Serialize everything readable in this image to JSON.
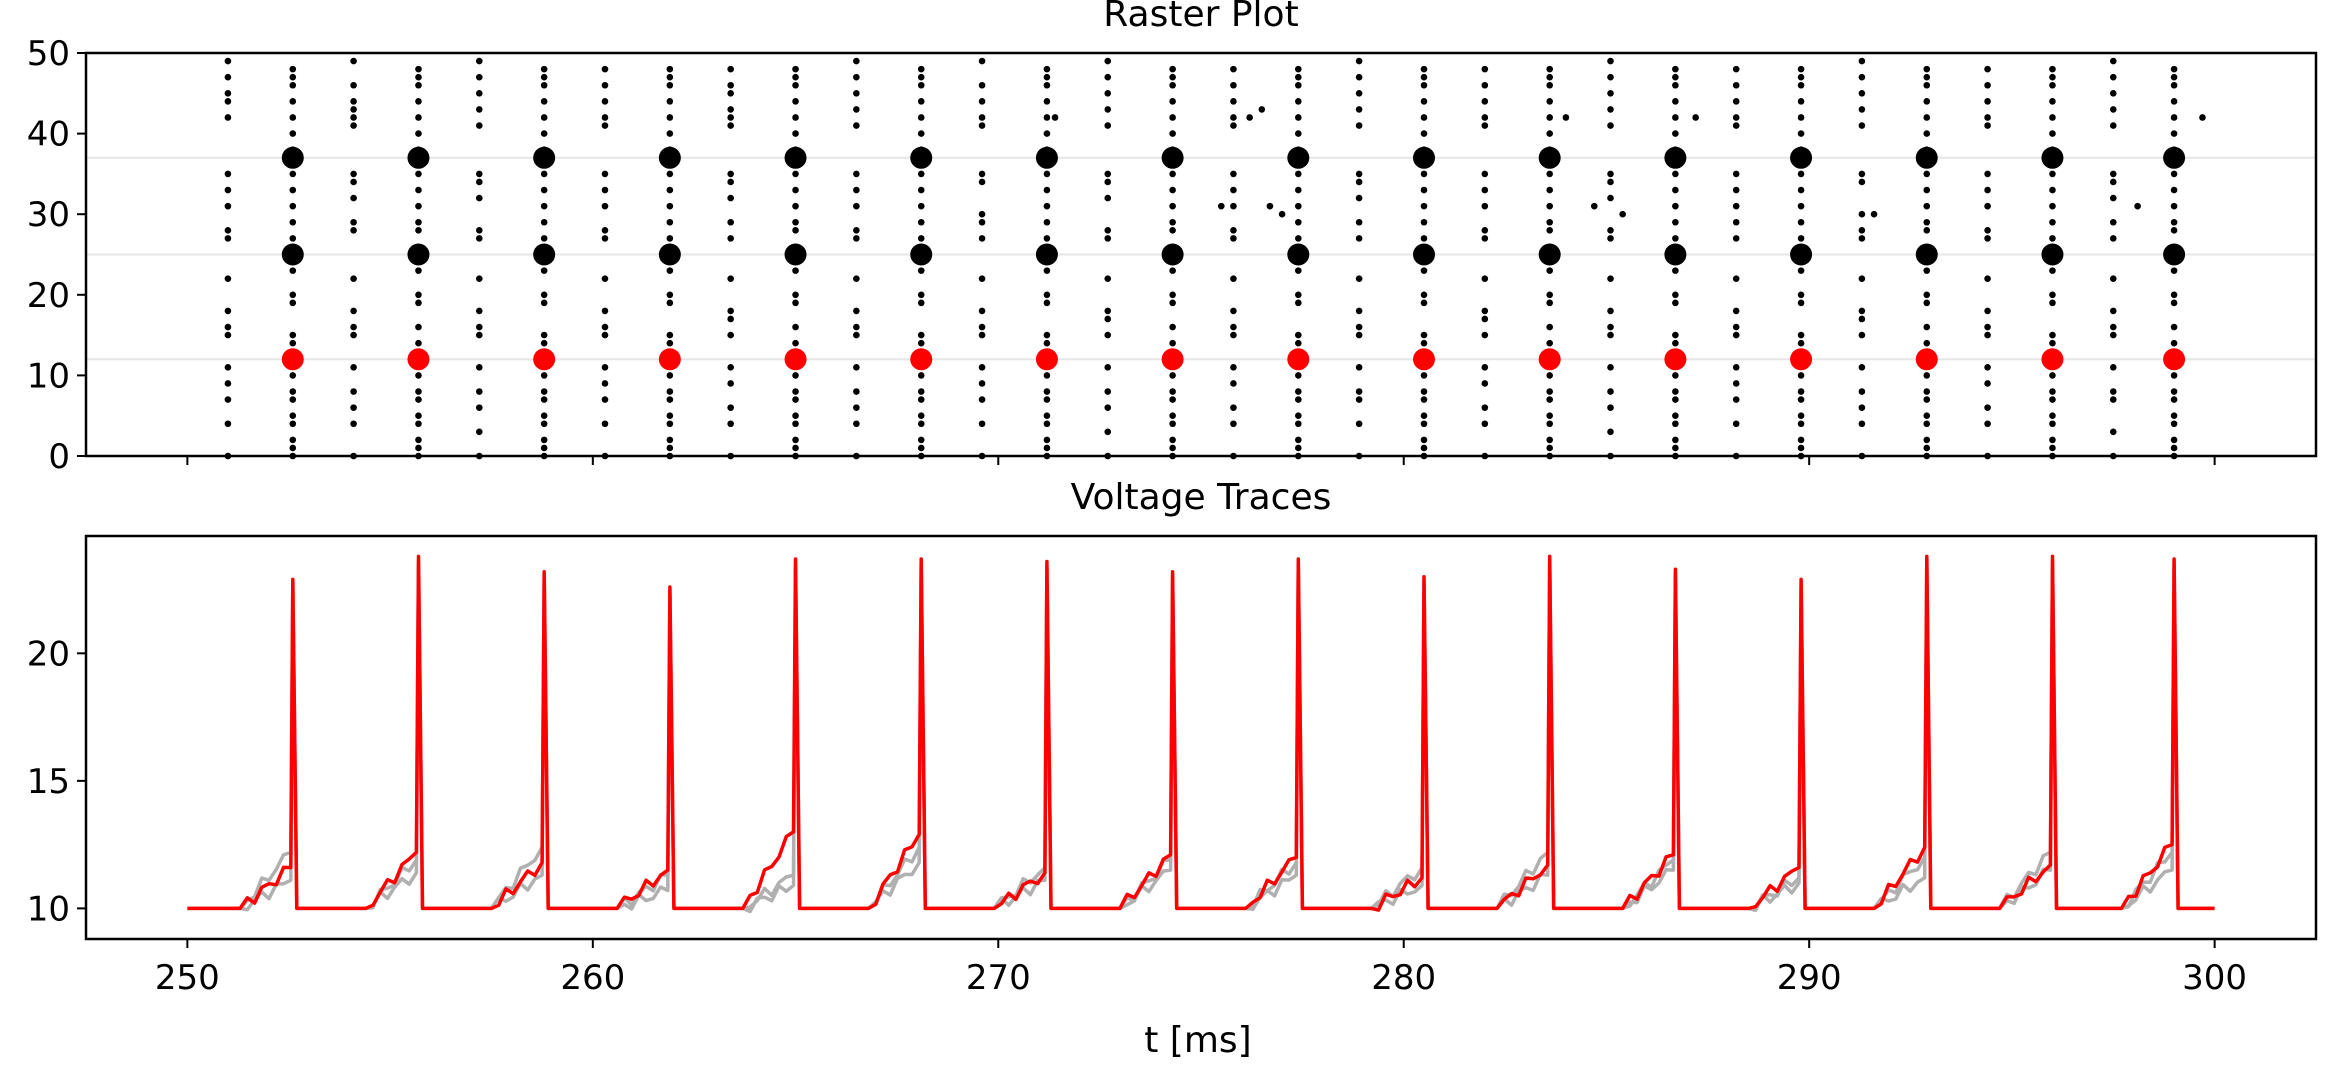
{
  "chart_data": [
    {
      "type": "scatter",
      "title": "Raster Plot",
      "xlabel": "",
      "ylabel": "",
      "xlim": [
        247.5,
        302.5
      ],
      "ylim": [
        0,
        50
      ],
      "yticks": [
        0,
        10,
        20,
        30,
        40,
        50
      ],
      "ytick_labels": [
        "0",
        "10",
        "20",
        "30",
        "40",
        "50"
      ],
      "xticks": [
        250,
        260,
        270,
        280,
        290,
        300
      ],
      "xtick_labels_visible": false,
      "grid": false,
      "highlight_lines_y": [
        12,
        25,
        37
      ],
      "highlight_line_color": "#e6e6e6",
      "spike_colors": {
        "other": "#000000",
        "highlight_black": "#000000",
        "highlight_red": "#ff0000"
      },
      "highlighted_neurons": [
        {
          "neuron": 37,
          "color": "#000000"
        },
        {
          "neuron": 25,
          "color": "#000000"
        },
        {
          "neuron": 12,
          "color": "#ff0000"
        }
      ],
      "highlight_spike_times": [
        252.6,
        255.7,
        258.8,
        261.9,
        265.0,
        268.1,
        271.2,
        274.3,
        277.4,
        280.5,
        283.6,
        286.7,
        289.8,
        292.9,
        296.0,
        299.0
      ],
      "burst_columns": [
        {
          "t": 251.0,
          "neurons": [
            0,
            4,
            7,
            9,
            11,
            15,
            16,
            18,
            22,
            27,
            28,
            31,
            33,
            35,
            42,
            44,
            45,
            47,
            49
          ]
        },
        {
          "t": 252.6,
          "neurons": [
            0,
            1,
            2,
            4,
            5,
            7,
            8,
            10,
            12,
            14,
            15,
            19,
            20,
            23,
            25,
            27,
            29,
            31,
            33,
            35,
            37,
            38,
            40,
            42,
            44,
            46,
            47,
            48
          ]
        },
        {
          "t": 254.1,
          "neurons": [
            0,
            4,
            6,
            8,
            11,
            15,
            16,
            18,
            22,
            28,
            29,
            32,
            34,
            35,
            41,
            42,
            43,
            44,
            46,
            49
          ]
        },
        {
          "t": 255.7,
          "neurons": [
            0,
            1,
            2,
            4,
            5,
            7,
            8,
            10,
            12,
            14,
            16,
            19,
            20,
            23,
            25,
            28,
            29,
            31,
            33,
            35,
            37,
            38,
            40,
            42,
            44,
            46,
            47,
            48
          ]
        },
        {
          "t": 257.2,
          "neurons": [
            0,
            3,
            6,
            8,
            11,
            15,
            16,
            18,
            22,
            27,
            28,
            32,
            34,
            35,
            41,
            43,
            45,
            47,
            49
          ]
        },
        {
          "t": 258.8,
          "neurons": [
            0,
            1,
            2,
            4,
            5,
            7,
            8,
            10,
            12,
            14,
            15,
            19,
            20,
            23,
            25,
            27,
            29,
            31,
            33,
            35,
            37,
            38,
            40,
            42,
            44,
            46,
            47,
            48
          ]
        },
        {
          "t": 260.3,
          "neurons": [
            0,
            4,
            7,
            9,
            11,
            15,
            16,
            18,
            22,
            27,
            28,
            31,
            33,
            35,
            41,
            42,
            44,
            46,
            48
          ]
        },
        {
          "t": 261.9,
          "neurons": [
            0,
            1,
            2,
            4,
            5,
            7,
            8,
            10,
            12,
            14,
            15,
            19,
            20,
            23,
            25,
            27,
            29,
            31,
            33,
            35,
            37,
            38,
            40,
            42,
            44,
            46,
            47,
            48
          ]
        },
        {
          "t": 263.4,
          "neurons": [
            0,
            4,
            6,
            9,
            11,
            15,
            17,
            18,
            22,
            27,
            29,
            32,
            34,
            35,
            41,
            42,
            43,
            45,
            46,
            48
          ]
        },
        {
          "t": 265.0,
          "neurons": [
            0,
            1,
            2,
            4,
            5,
            7,
            8,
            10,
            12,
            14,
            16,
            19,
            20,
            23,
            25,
            28,
            29,
            31,
            33,
            35,
            37,
            38,
            40,
            42,
            44,
            46,
            47,
            48
          ]
        },
        {
          "t": 266.5,
          "neurons": [
            0,
            4,
            6,
            8,
            11,
            15,
            16,
            18,
            22,
            27,
            28,
            31,
            33,
            35,
            41,
            43,
            45,
            47,
            49
          ]
        },
        {
          "t": 268.1,
          "neurons": [
            0,
            1,
            2,
            4,
            5,
            7,
            8,
            10,
            12,
            14,
            15,
            19,
            20,
            23,
            25,
            27,
            29,
            31,
            33,
            35,
            37,
            38,
            40,
            42,
            44,
            46,
            47,
            48
          ]
        },
        {
          "t": 269.6,
          "neurons": [
            0,
            4,
            7,
            9,
            11,
            15,
            16,
            18,
            22,
            27,
            29,
            30,
            34,
            35,
            41,
            42,
            44,
            46,
            49
          ]
        },
        {
          "t": 271.2,
          "neurons": [
            0,
            1,
            2,
            4,
            5,
            7,
            8,
            10,
            12,
            14,
            15,
            19,
            20,
            23,
            25,
            27,
            29,
            31,
            33,
            35,
            37,
            38,
            40,
            42,
            44,
            46,
            47,
            48
          ]
        },
        {
          "t": 272.7,
          "neurons": [
            0,
            3,
            6,
            8,
            11,
            15,
            17,
            18,
            22,
            27,
            28,
            32,
            34,
            35,
            41,
            43,
            45,
            47,
            49
          ]
        },
        {
          "t": 274.3,
          "neurons": [
            0,
            1,
            2,
            4,
            5,
            7,
            8,
            10,
            12,
            14,
            16,
            19,
            20,
            23,
            25,
            28,
            29,
            31,
            33,
            35,
            37,
            38,
            40,
            42,
            44,
            46,
            47,
            48
          ]
        },
        {
          "t": 275.8,
          "neurons": [
            0,
            4,
            6,
            9,
            11,
            15,
            16,
            18,
            22,
            27,
            28,
            31,
            33,
            35,
            41,
            42,
            44,
            46,
            48
          ]
        },
        {
          "t": 277.4,
          "neurons": [
            0,
            1,
            2,
            4,
            5,
            7,
            8,
            10,
            12,
            14,
            15,
            19,
            20,
            23,
            25,
            27,
            29,
            31,
            33,
            35,
            37,
            38,
            40,
            42,
            44,
            46,
            47,
            48
          ]
        },
        {
          "t": 278.9,
          "neurons": [
            0,
            4,
            7,
            8,
            11,
            15,
            16,
            18,
            22,
            27,
            29,
            32,
            34,
            35,
            41,
            43,
            45,
            47,
            49
          ]
        },
        {
          "t": 280.5,
          "neurons": [
            0,
            1,
            2,
            4,
            5,
            7,
            8,
            10,
            12,
            14,
            15,
            19,
            20,
            23,
            25,
            27,
            29,
            31,
            33,
            35,
            37,
            38,
            40,
            42,
            44,
            46,
            47,
            48
          ]
        },
        {
          "t": 282.0,
          "neurons": [
            0,
            4,
            6,
            9,
            11,
            15,
            17,
            18,
            22,
            27,
            28,
            31,
            33,
            35,
            41,
            42,
            44,
            46,
            48
          ]
        },
        {
          "t": 283.6,
          "neurons": [
            0,
            1,
            2,
            4,
            5,
            7,
            8,
            10,
            12,
            14,
            16,
            19,
            20,
            23,
            25,
            28,
            29,
            31,
            33,
            35,
            37,
            38,
            40,
            42,
            44,
            46,
            47,
            48
          ]
        },
        {
          "t": 285.1,
          "neurons": [
            0,
            3,
            6,
            8,
            11,
            15,
            16,
            18,
            22,
            27,
            28,
            32,
            34,
            35,
            41,
            43,
            45,
            47,
            49
          ]
        },
        {
          "t": 286.7,
          "neurons": [
            0,
            1,
            2,
            4,
            5,
            7,
            8,
            10,
            12,
            14,
            15,
            19,
            20,
            23,
            25,
            27,
            29,
            31,
            33,
            35,
            37,
            38,
            40,
            42,
            44,
            46,
            47,
            48
          ]
        },
        {
          "t": 288.2,
          "neurons": [
            0,
            4,
            7,
            9,
            11,
            15,
            16,
            18,
            22,
            27,
            29,
            31,
            33,
            35,
            41,
            42,
            44,
            46,
            48
          ]
        },
        {
          "t": 289.8,
          "neurons": [
            0,
            1,
            2,
            4,
            5,
            7,
            8,
            10,
            12,
            14,
            15,
            19,
            20,
            23,
            25,
            27,
            29,
            31,
            33,
            35,
            37,
            38,
            40,
            42,
            44,
            46,
            47,
            48
          ]
        },
        {
          "t": 291.3,
          "neurons": [
            0,
            4,
            6,
            8,
            11,
            15,
            17,
            18,
            22,
            27,
            28,
            30,
            34,
            35,
            41,
            43,
            45,
            47,
            49
          ]
        },
        {
          "t": 292.9,
          "neurons": [
            0,
            1,
            2,
            4,
            5,
            7,
            8,
            10,
            12,
            14,
            16,
            19,
            20,
            23,
            25,
            28,
            29,
            31,
            33,
            35,
            37,
            38,
            40,
            42,
            44,
            46,
            47,
            48
          ]
        },
        {
          "t": 294.4,
          "neurons": [
            0,
            4,
            6,
            9,
            11,
            15,
            16,
            18,
            22,
            27,
            28,
            31,
            33,
            35,
            41,
            42,
            44,
            46,
            48
          ]
        },
        {
          "t": 296.0,
          "neurons": [
            0,
            1,
            2,
            4,
            5,
            7,
            8,
            10,
            12,
            14,
            15,
            19,
            20,
            23,
            25,
            27,
            29,
            31,
            33,
            35,
            37,
            38,
            40,
            42,
            44,
            46,
            47,
            48
          ]
        },
        {
          "t": 297.5,
          "neurons": [
            0,
            3,
            7,
            8,
            11,
            15,
            16,
            18,
            22,
            27,
            29,
            32,
            34,
            35,
            41,
            43,
            45,
            47,
            49
          ]
        },
        {
          "t": 299.0,
          "neurons": [
            0,
            1,
            2,
            4,
            5,
            7,
            8,
            10,
            12,
            14,
            16,
            19,
            20,
            23,
            25,
            28,
            29,
            31,
            33,
            35,
            37,
            38,
            40,
            42,
            44,
            46,
            47,
            48
          ]
        }
      ],
      "stray_spikes": [
        {
          "t": 271.4,
          "n": 42
        },
        {
          "t": 275.5,
          "n": 31
        },
        {
          "t": 276.2,
          "n": 42
        },
        {
          "t": 276.5,
          "n": 43
        },
        {
          "t": 276.7,
          "n": 31
        },
        {
          "t": 277.0,
          "n": 30
        },
        {
          "t": 284.0,
          "n": 42
        },
        {
          "t": 284.7,
          "n": 31
        },
        {
          "t": 285.4,
          "n": 30
        },
        {
          "t": 287.2,
          "n": 42
        },
        {
          "t": 291.6,
          "n": 30
        },
        {
          "t": 298.1,
          "n": 31
        },
        {
          "t": 299.7,
          "n": 42
        }
      ]
    },
    {
      "type": "line",
      "title": "Voltage Traces",
      "xlabel": "t [ms]",
      "ylabel": "",
      "xlim": [
        247.5,
        302.5
      ],
      "ylim": [
        8.8,
        24.6
      ],
      "xticks": [
        250,
        260,
        270,
        280,
        290,
        300
      ],
      "xtick_labels": [
        "250",
        "260",
        "270",
        "280",
        "290",
        "300"
      ],
      "yticks": [
        10,
        15,
        20
      ],
      "ytick_labels": [
        "10",
        "15",
        "20"
      ],
      "grid": false,
      "reset_potential": 10,
      "spike_times": [
        252.6,
        255.7,
        258.8,
        261.9,
        265.0,
        268.1,
        271.2,
        274.3,
        277.4,
        280.5,
        283.6,
        286.7,
        289.8,
        292.9,
        296.0,
        299.0
      ],
      "peak_values": [
        22.9,
        23.8,
        23.2,
        22.6,
        23.7,
        23.7,
        23.6,
        23.2,
        23.7,
        23.0,
        23.8,
        23.3,
        22.9,
        23.8,
        23.8,
        23.7
      ],
      "series": [
        {
          "color": "#ff0000",
          "pre_spike_level": [
            11.6,
            12.2,
            11.8,
            11.5,
            13.0,
            12.9,
            11.4,
            12.1,
            12.0,
            11.2,
            11.7,
            12.1,
            11.6,
            12.4,
            11.7,
            12.5
          ]
        },
        {
          "color": "#b0b0b0",
          "pre_spike_level": [
            12.2,
            11.9,
            12.4,
            11.3,
            11.3,
            12.4,
            11.6,
            11.9,
            11.3,
            11.6,
            12.2,
            11.5,
            11.2,
            12.0,
            12.2,
            11.5
          ]
        },
        {
          "color": "#b0b0b0",
          "pre_spike_level": [
            11.1,
            11.4,
            11.3,
            10.7,
            10.9,
            11.8,
            11.1,
            11.5,
            11.8,
            10.9,
            11.3,
            11.9,
            11.0,
            11.2,
            11.5,
            12.2
          ]
        }
      ]
    }
  ]
}
